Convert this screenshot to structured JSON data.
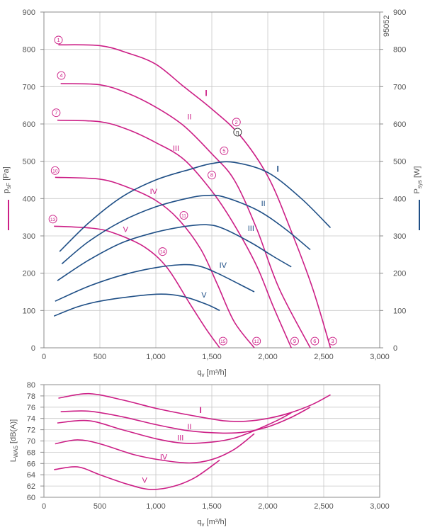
{
  "doc_code": "95052",
  "colors": {
    "pressure": "#cc1f86",
    "power": "#1f4f86",
    "grid": "#c8c8c8",
    "axis": "#8c8c8c",
    "text": "#555555"
  },
  "chart_data": [
    {
      "type": "line",
      "id": "pressure_power",
      "xlabel": "q_v [m³/h]",
      "ylabel_left": "p_sF [Pa]",
      "ylabel_right": "P_sys [W]",
      "xlim": [
        0,
        3000
      ],
      "ylim": [
        0,
        900
      ],
      "y2lim": [
        0,
        900
      ],
      "xticks": [
        0,
        500,
        1000,
        1500,
        2000,
        2500,
        3000
      ],
      "xtick_labels": [
        "0",
        "500",
        "1,000",
        "1,500",
        "2,000",
        "2,500",
        "3,000"
      ],
      "yticks": [
        0,
        100,
        200,
        300,
        400,
        500,
        600,
        700,
        800,
        900
      ],
      "grid": true,
      "series": [
        {
          "kind": "pressure",
          "name": "I",
          "points": [
            [
              130,
              812
            ],
            [
              500,
              810
            ],
            [
              750,
              790
            ],
            [
              1000,
              760
            ],
            [
              1250,
              700
            ],
            [
              1500,
              640
            ],
            [
              1750,
              570
            ],
            [
              2000,
              460
            ],
            [
              2200,
              320
            ],
            [
              2400,
              160
            ],
            [
              2560,
              0
            ]
          ]
        },
        {
          "kind": "pressure",
          "name": "II",
          "points": [
            [
              150,
              708
            ],
            [
              500,
              705
            ],
            [
              750,
              682
            ],
            [
              1000,
              645
            ],
            [
              1250,
              595
            ],
            [
              1500,
              520
            ],
            [
              1700,
              450
            ],
            [
              1900,
              320
            ],
            [
              2100,
              160
            ],
            [
              2380,
              0
            ]
          ]
        },
        {
          "kind": "pressure",
          "name": "III",
          "points": [
            [
              120,
              610
            ],
            [
              500,
              606
            ],
            [
              750,
              585
            ],
            [
              1000,
              550
            ],
            [
              1250,
              505
            ],
            [
              1500,
              420
            ],
            [
              1700,
              330
            ],
            [
              1900,
              220
            ],
            [
              2050,
              110
            ],
            [
              2210,
              0
            ]
          ]
        },
        {
          "kind": "pressure",
          "name": "IV",
          "points": [
            [
              100,
              457
            ],
            [
              500,
              452
            ],
            [
              750,
              430
            ],
            [
              1000,
              395
            ],
            [
              1200,
              345
            ],
            [
              1400,
              265
            ],
            [
              1550,
              170
            ],
            [
              1700,
              70
            ],
            [
              1880,
              0
            ]
          ]
        },
        {
          "kind": "pressure",
          "name": "V",
          "points": [
            [
              90,
              326
            ],
            [
              450,
              320
            ],
            [
              650,
              305
            ],
            [
              900,
              270
            ],
            [
              1100,
              215
            ],
            [
              1300,
              120
            ],
            [
              1450,
              50
            ],
            [
              1570,
              0
            ]
          ]
        },
        {
          "kind": "power",
          "name": "I",
          "points": [
            [
              140,
              258
            ],
            [
              400,
              335
            ],
            [
              700,
              405
            ],
            [
              1000,
              450
            ],
            [
              1300,
              478
            ],
            [
              1500,
              494
            ],
            [
              1700,
              497
            ],
            [
              2000,
              470
            ],
            [
              2300,
              400
            ],
            [
              2560,
              322
            ]
          ]
        },
        {
          "kind": "power",
          "name": "II",
          "points": [
            [
              160,
              225
            ],
            [
              400,
              285
            ],
            [
              700,
              340
            ],
            [
              1000,
              378
            ],
            [
              1300,
              402
            ],
            [
              1450,
              408
            ],
            [
              1600,
              405
            ],
            [
              1900,
              370
            ],
            [
              2150,
              320
            ],
            [
              2380,
              263
            ]
          ]
        },
        {
          "kind": "power",
          "name": "III",
          "points": [
            [
              120,
              180
            ],
            [
              400,
              235
            ],
            [
              700,
              282
            ],
            [
              1000,
              310
            ],
            [
              1250,
              325
            ],
            [
              1450,
              330
            ],
            [
              1600,
              320
            ],
            [
              1850,
              282
            ],
            [
              2050,
              245
            ],
            [
              2210,
              217
            ]
          ]
        },
        {
          "kind": "power",
          "name": "IV",
          "points": [
            [
              100,
              125
            ],
            [
              400,
              165
            ],
            [
              700,
              195
            ],
            [
              1000,
              215
            ],
            [
              1250,
              223
            ],
            [
              1400,
              218
            ],
            [
              1550,
              200
            ],
            [
              1750,
              170
            ],
            [
              1880,
              150
            ]
          ]
        },
        {
          "kind": "power",
          "name": "V",
          "points": [
            [
              90,
              85
            ],
            [
              300,
              110
            ],
            [
              500,
              125
            ],
            [
              800,
              138
            ],
            [
              1050,
              144
            ],
            [
              1250,
              137
            ],
            [
              1450,
              117
            ],
            [
              1570,
              100
            ]
          ]
        }
      ],
      "curve_labels": [
        {
          "kind": "pressure",
          "text": "I",
          "x": 1450,
          "y": 675
        },
        {
          "kind": "pressure",
          "text": "II",
          "x": 1300,
          "y": 612
        },
        {
          "kind": "pressure",
          "text": "III",
          "x": 1180,
          "y": 528
        },
        {
          "kind": "pressure",
          "text": "IV",
          "x": 980,
          "y": 412
        },
        {
          "kind": "pressure",
          "text": "V",
          "x": 730,
          "y": 310
        },
        {
          "kind": "power",
          "text": "I",
          "x": 2090,
          "y": 472
        },
        {
          "kind": "power",
          "text": "II",
          "x": 1960,
          "y": 380
        },
        {
          "kind": "power",
          "text": "III",
          "x": 1850,
          "y": 313
        },
        {
          "kind": "power",
          "text": "IV",
          "x": 1600,
          "y": 215
        },
        {
          "kind": "power",
          "text": "V",
          "x": 1430,
          "y": 135
        }
      ],
      "operating_points": [
        {
          "label": "1",
          "x": 130,
          "y": 825
        },
        {
          "label": "2",
          "x": 1720,
          "y": 605
        },
        {
          "label": "3",
          "x": 2580,
          "y": 18
        },
        {
          "label": "4",
          "x": 155,
          "y": 730
        },
        {
          "label": "5",
          "x": 1610,
          "y": 528
        },
        {
          "label": "6",
          "x": 2420,
          "y": 18
        },
        {
          "label": "7",
          "x": 110,
          "y": 630
        },
        {
          "label": "8",
          "x": 1500,
          "y": 463
        },
        {
          "label": "9",
          "x": 2240,
          "y": 18
        },
        {
          "label": "10",
          "x": 100,
          "y": 475
        },
        {
          "label": "11",
          "x": 1250,
          "y": 355
        },
        {
          "label": "12",
          "x": 1900,
          "y": 18
        },
        {
          "label": "13",
          "x": 80,
          "y": 345
        },
        {
          "label": "14",
          "x": 1060,
          "y": 258
        },
        {
          "label": "15",
          "x": 1600,
          "y": 18
        }
      ],
      "efficiency_marker": {
        "label": "η",
        "x": 1730,
        "y": 578
      }
    },
    {
      "type": "line",
      "id": "sound",
      "xlabel": "q_v [m³/h]",
      "ylabel": "L_WA5 [dB(A)]",
      "xlim": [
        0,
        3000
      ],
      "ylim": [
        60,
        80
      ],
      "xticks": [
        0,
        500,
        1000,
        1500,
        2000,
        2500,
        3000
      ],
      "xtick_labels": [
        "0",
        "500",
        "1,000",
        "1,500",
        "2,000",
        "2,500",
        "3,000"
      ],
      "yticks": [
        60,
        62,
        64,
        66,
        68,
        70,
        72,
        74,
        76,
        78,
        80
      ],
      "grid": true,
      "series": [
        {
          "name": "I",
          "points": [
            [
              130,
              77.6
            ],
            [
              400,
              78.4
            ],
            [
              700,
              77.3
            ],
            [
              1000,
              75.8
            ],
            [
              1300,
              74.6
            ],
            [
              1600,
              73.6
            ],
            [
              1800,
              73.5
            ],
            [
              2000,
              74.0
            ],
            [
              2200,
              75.0
            ],
            [
              2400,
              76.5
            ],
            [
              2560,
              78.2
            ]
          ]
        },
        {
          "name": "II",
          "points": [
            [
              150,
              75.2
            ],
            [
              400,
              75.3
            ],
            [
              700,
              74.3
            ],
            [
              1000,
              72.9
            ],
            [
              1300,
              71.8
            ],
            [
              1600,
              71.4
            ],
            [
              1800,
              71.6
            ],
            [
              2000,
              72.5
            ],
            [
              2200,
              74.1
            ],
            [
              2380,
              76.0
            ]
          ]
        },
        {
          "name": "III",
          "points": [
            [
              120,
              73.2
            ],
            [
              400,
              73.6
            ],
            [
              700,
              72.0
            ],
            [
              1000,
              70.4
            ],
            [
              1250,
              69.6
            ],
            [
              1500,
              69.8
            ],
            [
              1700,
              70.5
            ],
            [
              1900,
              72.0
            ],
            [
              2100,
              73.8
            ],
            [
              2210,
              75.0
            ]
          ]
        },
        {
          "name": "IV",
          "points": [
            [
              100,
              69.5
            ],
            [
              300,
              70.2
            ],
            [
              500,
              69.5
            ],
            [
              800,
              67.6
            ],
            [
              1050,
              66.6
            ],
            [
              1300,
              66.1
            ],
            [
              1500,
              66.7
            ],
            [
              1700,
              68.5
            ],
            [
              1880,
              71.3
            ]
          ]
        },
        {
          "name": "V",
          "points": [
            [
              90,
              64.9
            ],
            [
              300,
              65.4
            ],
            [
              500,
              64.0
            ],
            [
              750,
              62.3
            ],
            [
              950,
              61.4
            ],
            [
              1150,
              61.9
            ],
            [
              1350,
              63.5
            ],
            [
              1570,
              66.6
            ]
          ]
        }
      ],
      "curve_labels": [
        {
          "text": "I",
          "x": 1400,
          "y": 75.0
        },
        {
          "text": "II",
          "x": 1300,
          "y": 72.1
        },
        {
          "text": "III",
          "x": 1220,
          "y": 70.1
        },
        {
          "text": "IV",
          "x": 1070,
          "y": 66.7
        },
        {
          "text": "V",
          "x": 900,
          "y": 62.6
        }
      ]
    }
  ]
}
